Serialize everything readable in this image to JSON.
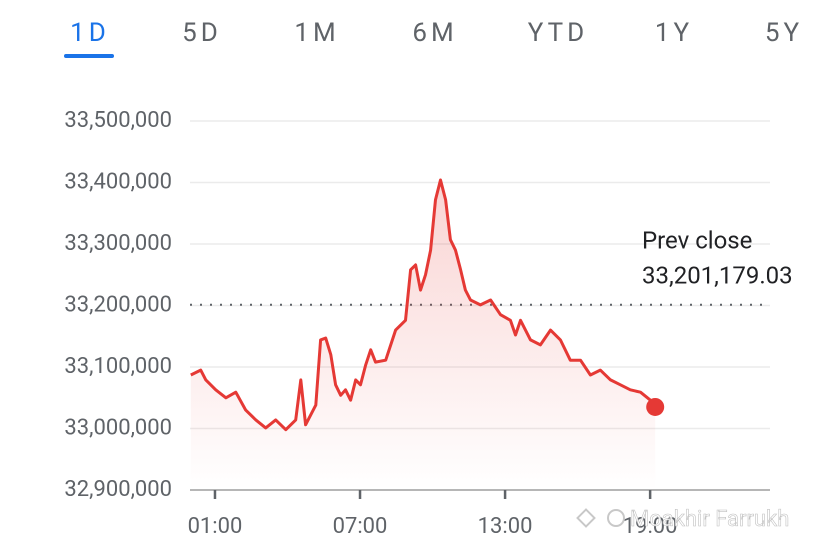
{
  "tabs": [
    "1D",
    "5D",
    "1M",
    "6M",
    "YTD",
    "1Y",
    "5Y"
  ],
  "selected_tab": 0,
  "watermark": "Moakhir Farrukh",
  "chart_data": {
    "type": "line",
    "color": "#e53935",
    "x": [
      0,
      0.41,
      0.62,
      1.03,
      1.45,
      1.86,
      2.27,
      2.69,
      3.1,
      3.51,
      3.93,
      4.34,
      4.55,
      4.75,
      5.17,
      5.37,
      5.58,
      5.79,
      5.99,
      6.2,
      6.4,
      6.61,
      6.82,
      7.02,
      7.23,
      7.44,
      7.64,
      8.06,
      8.47,
      8.88,
      9.09,
      9.3,
      9.5,
      9.71,
      9.92,
      10.12,
      10.33,
      10.54,
      10.74,
      10.95,
      11.16,
      11.36,
      11.57,
      11.98,
      12.4,
      12.81,
      13.22,
      13.43,
      13.64,
      14.05,
      14.46,
      14.88,
      15.29,
      15.7,
      16.12,
      16.53,
      16.94,
      17.36,
      17.77,
      18.18,
      18.6,
      19.01,
      19.21
    ],
    "values": [
      33087000,
      33095000,
      33079000,
      33063000,
      33050000,
      33059000,
      33030000,
      33014000,
      33001000,
      33014000,
      32998000,
      33014000,
      33079000,
      33006000,
      33038000,
      33144000,
      33147000,
      33120000,
      33071000,
      33054000,
      33063000,
      33046000,
      33079000,
      33071000,
      33103000,
      33128000,
      33108000,
      33111000,
      33160000,
      33176000,
      33258000,
      33266000,
      33225000,
      33250000,
      33290000,
      33372000,
      33404000,
      33372000,
      33307000,
      33290000,
      33258000,
      33225000,
      33209000,
      33201000,
      33209000,
      33185000,
      33176000,
      33152000,
      33176000,
      33144000,
      33136000,
      33160000,
      33144000,
      33111000,
      33111000,
      33087000,
      33095000,
      33079000,
      33071000,
      33063000,
      33059000,
      33046000,
      33035000
    ],
    "xlim": [
      0,
      24
    ],
    "xticks": [
      {
        "value": 1,
        "label": "01:00"
      },
      {
        "value": 7,
        "label": "07:00"
      },
      {
        "value": 13,
        "label": "13:00"
      },
      {
        "value": 19,
        "label": "19:00"
      }
    ],
    "ylim": [
      32900000,
      33500000
    ],
    "yticks": [
      {
        "value": 32900000,
        "label": "32,900,000"
      },
      {
        "value": 33000000,
        "label": "33,000,000"
      },
      {
        "value": 33100000,
        "label": "33,100,000"
      },
      {
        "value": 33200000,
        "label": "33,200,000"
      },
      {
        "value": 33300000,
        "label": "33,300,000"
      },
      {
        "value": 33400000,
        "label": "33,400,000"
      },
      {
        "value": 33500000,
        "label": "33,500,000"
      }
    ],
    "grid": true,
    "prev_close": {
      "label": "Prev close",
      "value": 33201179.03,
      "value_label": "33,201,179.03"
    }
  }
}
